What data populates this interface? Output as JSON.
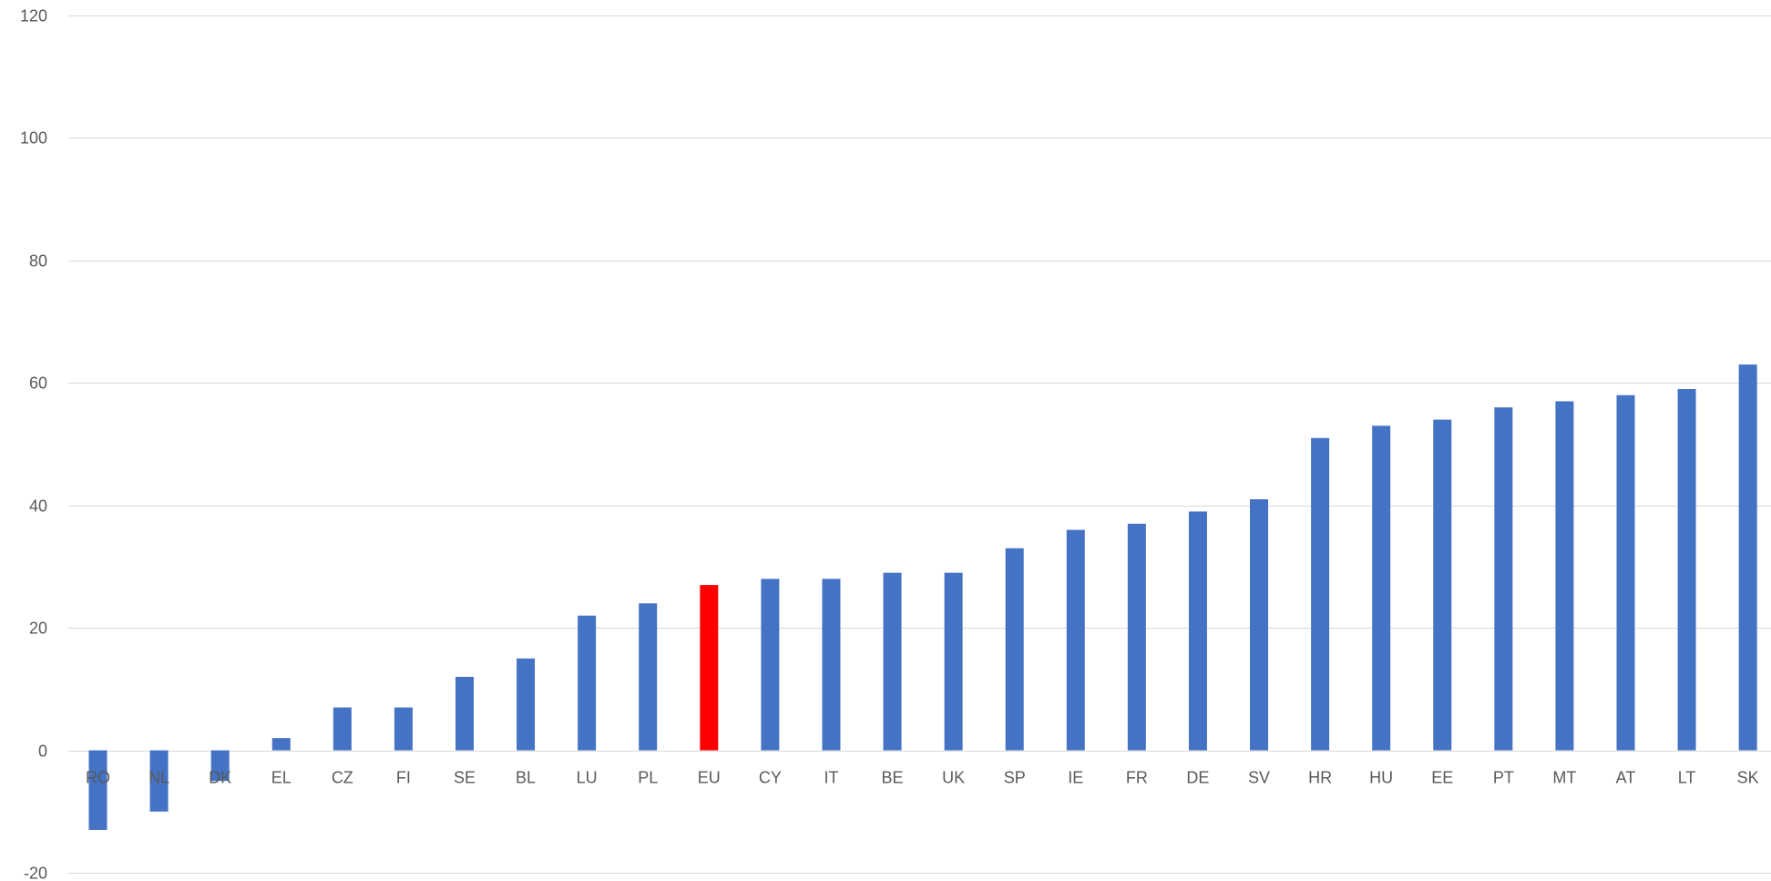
{
  "chart_data": {
    "type": "bar",
    "title": "",
    "xlabel": "",
    "ylabel": "",
    "ylim": [
      -20,
      120
    ],
    "yticks": [
      -20,
      0,
      20,
      40,
      60,
      80,
      100,
      120
    ],
    "grid": true,
    "legend": "none",
    "categories": [
      "RO",
      "NL",
      "DK",
      "EL",
      "CZ",
      "FI",
      "SE",
      "BL",
      "LU",
      "PL",
      "EU",
      "CY",
      "IT",
      "BE",
      "UK",
      "SP",
      "IE",
      "FR",
      "DE",
      "SV",
      "HR",
      "HU",
      "EE",
      "PT",
      "MT",
      "AT",
      "LT",
      "SK"
    ],
    "values": [
      -13,
      -10,
      -5,
      2,
      7,
      7,
      12,
      15,
      22,
      24,
      27,
      28,
      28,
      29,
      29,
      33,
      36,
      37,
      39,
      41,
      51,
      53,
      54,
      56,
      57,
      58,
      59,
      63
    ],
    "highlight_category": "EU",
    "colors": {
      "bar": "#4472C4",
      "highlight": "#FF0000",
      "grid": "#D9D9D9",
      "text": "#595959"
    }
  }
}
